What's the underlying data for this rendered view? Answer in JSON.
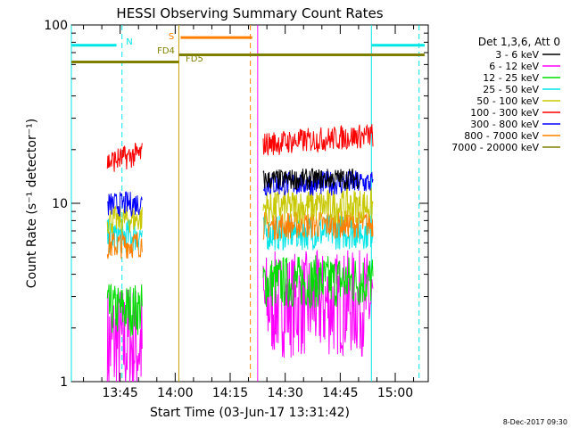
{
  "chart_data": {
    "type": "line",
    "title": "HESSI Observing Summary Count Rates",
    "xlabel": "Start Time (03-Jun-17 13:31:42)",
    "ylabel": "Count Rate (s⁻¹ detector⁻¹)",
    "x_range": [
      "13:31:42",
      "15:09:00"
    ],
    "ylim": [
      1,
      100
    ],
    "y_scale": "log",
    "x_ticks": [
      "13:45",
      "14:00",
      "14:15",
      "14:30",
      "14:45",
      "15:00"
    ],
    "y_ticks": [
      "1",
      "10",
      "100"
    ],
    "date_stamp": "8-Dec-2017 09:30",
    "legend": {
      "title": "Det 1,3,6, Att 0",
      "placement": "right",
      "entries": [
        {
          "label": "3 - 6 keV",
          "color": "#000000"
        },
        {
          "label": "6 - 12 keV",
          "color": "#ff00ff"
        },
        {
          "label": "12 - 25 keV",
          "color": "#00dd00"
        },
        {
          "label": "25 - 50 keV",
          "color": "#00e5e5"
        },
        {
          "label": "50 - 100 keV",
          "color": "#c8c800"
        },
        {
          "label": "100 - 300 keV",
          "color": "#ff0000"
        },
        {
          "label": "300 - 800 keV",
          "color": "#0000ff"
        },
        {
          "label": "800 - 7000 keV",
          "color": "#ff8000"
        },
        {
          "label": "7000 - 20000 keV",
          "color": "#808000"
        }
      ]
    },
    "flags": [
      {
        "label": "N",
        "color": "#00e5e5",
        "level": 77,
        "segments": [
          [
            "13:31:42",
            "13:44:00"
          ],
          [
            "14:53:30",
            "15:08:00"
          ]
        ]
      },
      {
        "label": "S",
        "color": "#ff8000",
        "level": 85,
        "segments": [
          [
            "14:01:30",
            "14:21:00"
          ]
        ]
      },
      {
        "label": "FD4",
        "color": "#808000",
        "level": 62,
        "segments": [
          [
            "13:31:42",
            "14:01:00"
          ]
        ]
      },
      {
        "label": "FD5",
        "color": "#808000",
        "level": 68,
        "segments": [
          [
            "14:01:00",
            "15:08:00"
          ]
        ]
      }
    ],
    "vertical_lines": [
      {
        "time": "13:31:42",
        "color": "#00e5e5",
        "style": "solid"
      },
      {
        "time": "13:45:30",
        "color": "#00e5e5",
        "style": "dashed"
      },
      {
        "time": "14:01:00",
        "color": "#c8a000",
        "style": "solid"
      },
      {
        "time": "14:20:30",
        "color": "#ff8000",
        "style": "dashed"
      },
      {
        "time": "14:22:30",
        "color": "#ff00ff",
        "style": "solid"
      },
      {
        "time": "14:53:30",
        "color": "#00e5e5",
        "style": "solid"
      },
      {
        "time": "15:06:30",
        "color": "#00e5e5",
        "style": "dashed"
      }
    ],
    "series": [
      {
        "band": "3 - 6 keV",
        "color": "#000000",
        "segments": [
          {
            "start": "14:24:00",
            "end": "14:50:30",
            "value": 13.5,
            "noise": 0.06
          }
        ]
      },
      {
        "band": "6 - 12 keV",
        "color": "#ff00ff",
        "segments": [
          {
            "start": "13:41:30",
            "end": "13:51:00",
            "value": 1.6,
            "noise": 0.35
          },
          {
            "start": "14:24:00",
            "end": "14:54:00",
            "value": 2.7,
            "noise": 0.3
          }
        ]
      },
      {
        "band": "12 - 25 keV",
        "color": "#00dd00",
        "segments": [
          {
            "start": "13:41:30",
            "end": "13:51:00",
            "value": 2.5,
            "noise": 0.15
          },
          {
            "start": "14:24:00",
            "end": "14:54:00",
            "value": 3.6,
            "noise": 0.15
          }
        ]
      },
      {
        "band": "25 - 50 keV",
        "color": "#00e5e5",
        "segments": [
          {
            "start": "13:41:30",
            "end": "13:51:00",
            "value": 6.5,
            "noise": 0.1
          },
          {
            "start": "14:24:00",
            "end": "14:54:00",
            "value": 6.8,
            "noise": 0.1
          }
        ]
      },
      {
        "band": "50 - 100 keV",
        "color": "#c8c800",
        "segments": [
          {
            "start": "13:41:30",
            "end": "13:51:00",
            "value": 8.0,
            "noise": 0.08
          },
          {
            "start": "14:24:00",
            "end": "14:54:00",
            "value": 9.5,
            "noise": 0.1
          }
        ]
      },
      {
        "band": "100 - 300 keV",
        "color": "#ff0000",
        "segments": [
          {
            "start": "13:41:30",
            "end": "13:51:00",
            "value": 17.0,
            "noise": 0.07
          },
          {
            "start": "14:24:00",
            "end": "14:54:00",
            "value": 21.5,
            "noise": 0.07
          }
        ]
      },
      {
        "band": "300 - 800 keV",
        "color": "#0000ff",
        "segments": [
          {
            "start": "13:41:30",
            "end": "13:51:00",
            "value": 9.8,
            "noise": 0.07
          },
          {
            "start": "14:24:00",
            "end": "14:54:00",
            "value": 12.8,
            "noise": 0.07
          }
        ]
      },
      {
        "band": "800 - 7000 keV",
        "color": "#ff8000",
        "segments": [
          {
            "start": "13:41:30",
            "end": "13:51:00",
            "value": 5.8,
            "noise": 0.08
          },
          {
            "start": "14:24:00",
            "end": "14:54:00",
            "value": 7.5,
            "noise": 0.08
          }
        ]
      },
      {
        "band": "7000 - 20000 keV",
        "color": "#808000",
        "segments": []
      }
    ]
  }
}
